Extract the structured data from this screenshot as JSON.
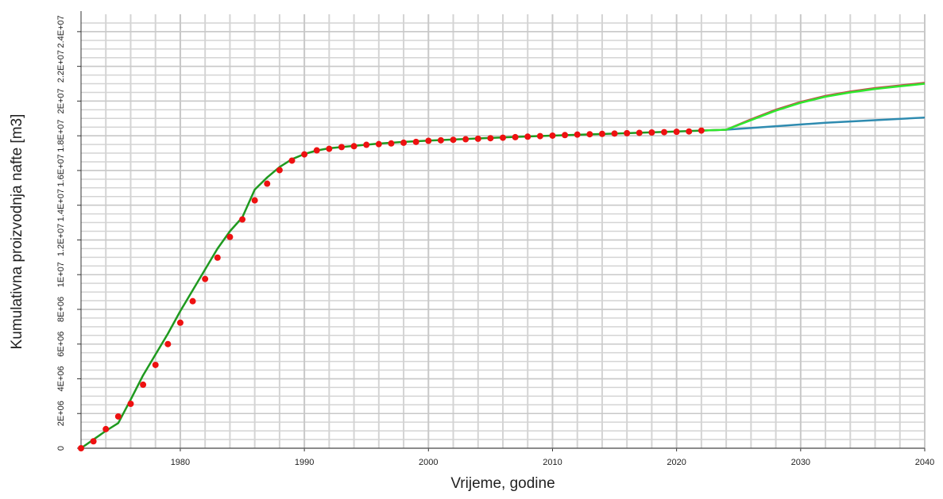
{
  "chart_data": {
    "type": "line",
    "x_label": "Vrijeme, godine",
    "y_label": "Kumulativna proizvodnja nafte [m3]",
    "xlim": [
      1972,
      2040
    ],
    "xticks": [
      1980,
      1990,
      2000,
      2010,
      2020,
      2030,
      2040
    ],
    "ylim": [
      0,
      25000000
    ],
    "yticks": [
      0,
      {
        "value": 2000000,
        "label": "2E+06"
      },
      {
        "value": 4000000,
        "label": "4E+06"
      },
      {
        "value": 6000000,
        "label": "6E+06"
      },
      {
        "value": 8000000,
        "label": "8E+06"
      },
      {
        "value": 10000000,
        "label": "1E+07"
      },
      {
        "value": 12000000,
        "label": "1.2E+07"
      },
      {
        "value": 14000000,
        "label": "1.4E+07"
      },
      {
        "value": 16000000,
        "label": "1.6E+07"
      },
      {
        "value": 18000000,
        "label": "1.8E+07"
      },
      {
        "value": 20000000,
        "label": "2E+07"
      },
      {
        "value": 22000000,
        "label": "2.2E+07"
      },
      {
        "value": 24000000,
        "label": "2.4E+07"
      }
    ],
    "grid": true,
    "series": [
      {
        "color": "#2e8bb0",
        "style": "line",
        "x": [
          2022,
          2024,
          2028,
          2032,
          2036,
          2040
        ],
        "values": [
          18300000,
          18350000,
          18550000,
          18750000,
          18900000,
          19050000
        ]
      },
      {
        "color": "#c0504d",
        "style": "line",
        "x": [
          2022,
          2024,
          2026,
          2028,
          2030,
          2032,
          2034,
          2036,
          2038,
          2040
        ],
        "values": [
          18300000,
          18350000,
          18950000,
          19500000,
          19950000,
          20300000,
          20550000,
          20750000,
          20900000,
          21050000
        ]
      },
      {
        "color": "#2ee82e",
        "style": "line",
        "x": [
          2022,
          2024,
          2026,
          2028,
          2030,
          2032,
          2034,
          2036,
          2038,
          2040
        ],
        "values": [
          18300000,
          18350000,
          18900000,
          19450000,
          19900000,
          20250000,
          20500000,
          20700000,
          20850000,
          21000000
        ]
      },
      {
        "color": "#1f9a1f",
        "style": "line",
        "x": [
          1972,
          1973,
          1974,
          1975,
          1976,
          1977,
          1978,
          1979,
          1980,
          1981,
          1982,
          1983,
          1984,
          1985,
          1986,
          1987,
          1988,
          1989,
          1990,
          1991,
          1992,
          1994,
          1996,
          1998,
          2000,
          2004,
          2008,
          2012,
          2016,
          2020,
          2022
        ],
        "values": [
          0,
          500000,
          1000000,
          1450000,
          2800000,
          4200000,
          5400000,
          6600000,
          7900000,
          9100000,
          10300000,
          11500000,
          12500000,
          13300000,
          14900000,
          15600000,
          16200000,
          16650000,
          16950000,
          17150000,
          17280000,
          17420000,
          17550000,
          17650000,
          17720000,
          17850000,
          17960000,
          18060000,
          18150000,
          18250000,
          18300000
        ]
      },
      {
        "color": "#ee1111",
        "style": "markers",
        "x": [
          1972,
          1973,
          1974,
          1975,
          1976,
          1977,
          1978,
          1979,
          1980,
          1981,
          1982,
          1983,
          1984,
          1985,
          1986,
          1987,
          1988,
          1989,
          1990,
          1991,
          1992,
          1993,
          1994,
          1995,
          1996,
          1997,
          1998,
          1999,
          2000,
          2001,
          2002,
          2003,
          2004,
          2005,
          2006,
          2007,
          2008,
          2009,
          2010,
          2011,
          2012,
          2013,
          2014,
          2015,
          2016,
          2017,
          2018,
          2019,
          2020,
          2021,
          2022
        ],
        "values": [
          0,
          400000,
          1100000,
          1830000,
          2560000,
          3660000,
          4800000,
          6000000,
          7230000,
          8470000,
          9750000,
          10980000,
          12170000,
          13180000,
          14280000,
          15240000,
          16020000,
          16570000,
          16930000,
          17160000,
          17250000,
          17350000,
          17400000,
          17480000,
          17520000,
          17560000,
          17600000,
          17650000,
          17710000,
          17740000,
          17770000,
          17800000,
          17830000,
          17860000,
          17890000,
          17920000,
          17950000,
          17980000,
          18010000,
          18040000,
          18070000,
          18090000,
          18110000,
          18130000,
          18150000,
          18170000,
          18190000,
          18210000,
          18230000,
          18250000,
          18300000
        ]
      }
    ]
  }
}
